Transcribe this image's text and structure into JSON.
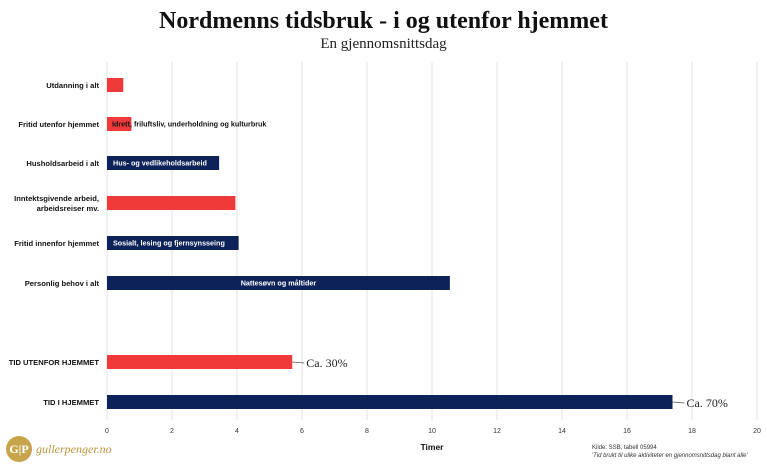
{
  "header": {
    "title": "Nordmenns tidsbruk - i og utenfor hjemmet",
    "subtitle": "En gjennomsnittsdag"
  },
  "colors": {
    "red": "#f03a3a",
    "navy": "#0d2259",
    "grid": "#e3e3e3"
  },
  "chart_data": {
    "type": "bar",
    "orientation": "horizontal",
    "xlabel": "Timer",
    "xlim": [
      0,
      20
    ],
    "xticks": [
      0,
      2,
      4,
      6,
      8,
      10,
      12,
      14,
      16,
      18,
      20
    ],
    "grid": true,
    "bars": [
      {
        "label": "Utdanning i alt",
        "label_lines": [
          "Utdanning i alt"
        ],
        "value": 0.5,
        "color": "red",
        "bar_text": ""
      },
      {
        "label": "Fritid utenfor hjemmet",
        "label_lines": [
          "Fritid utenfor hjemmet"
        ],
        "value": 0.75,
        "color": "red",
        "bar_text": "Idrett, friluftsliv, underholdning og kulturbruk"
      },
      {
        "label": "Husholdsarbeid i alt",
        "label_lines": [
          "Husholdsarbeid i alt"
        ],
        "value": 3.45,
        "color": "navy",
        "bar_text": "Hus- og vedlikeholdsarbeid"
      },
      {
        "label": "Inntektsgivende arbeid, arbeidsreiser mv.",
        "label_lines": [
          "Inntektsgivende arbeid,",
          "arbeidsreiser mv."
        ],
        "value": 3.95,
        "color": "red",
        "bar_text": ""
      },
      {
        "label": "Fritid innenfor hjemmet",
        "label_lines": [
          "Fritid innenfor hjemmet"
        ],
        "value": 4.05,
        "color": "navy",
        "bar_text": "Sosialt, lesing og fjernsynsseing"
      },
      {
        "label": "Personlig behov i alt",
        "label_lines": [
          "Personlig behov i alt"
        ],
        "value": 10.55,
        "color": "navy",
        "bar_text": "Nattesøvn og måltider"
      },
      {
        "label": "TID UTENFOR HJEMMET",
        "label_lines": [
          "TID UTENFOR HJEMMET"
        ],
        "value": 5.7,
        "color": "red",
        "bar_text": "",
        "callout": "Ca. 30%"
      },
      {
        "label": "TID I HJEMMET",
        "label_lines": [
          "TID I HJEMMET"
        ],
        "value": 17.4,
        "color": "navy",
        "bar_text": "",
        "callout": "Ca. 70%"
      }
    ]
  },
  "logo": {
    "mark": "G|P",
    "text": "gullerpenger.no"
  },
  "source": {
    "line1": "Kilde: SSB, tabell 05994",
    "line2": "'Tid brukt til ulike aktiviteter en gjennomsnittsdag blant alle'"
  }
}
